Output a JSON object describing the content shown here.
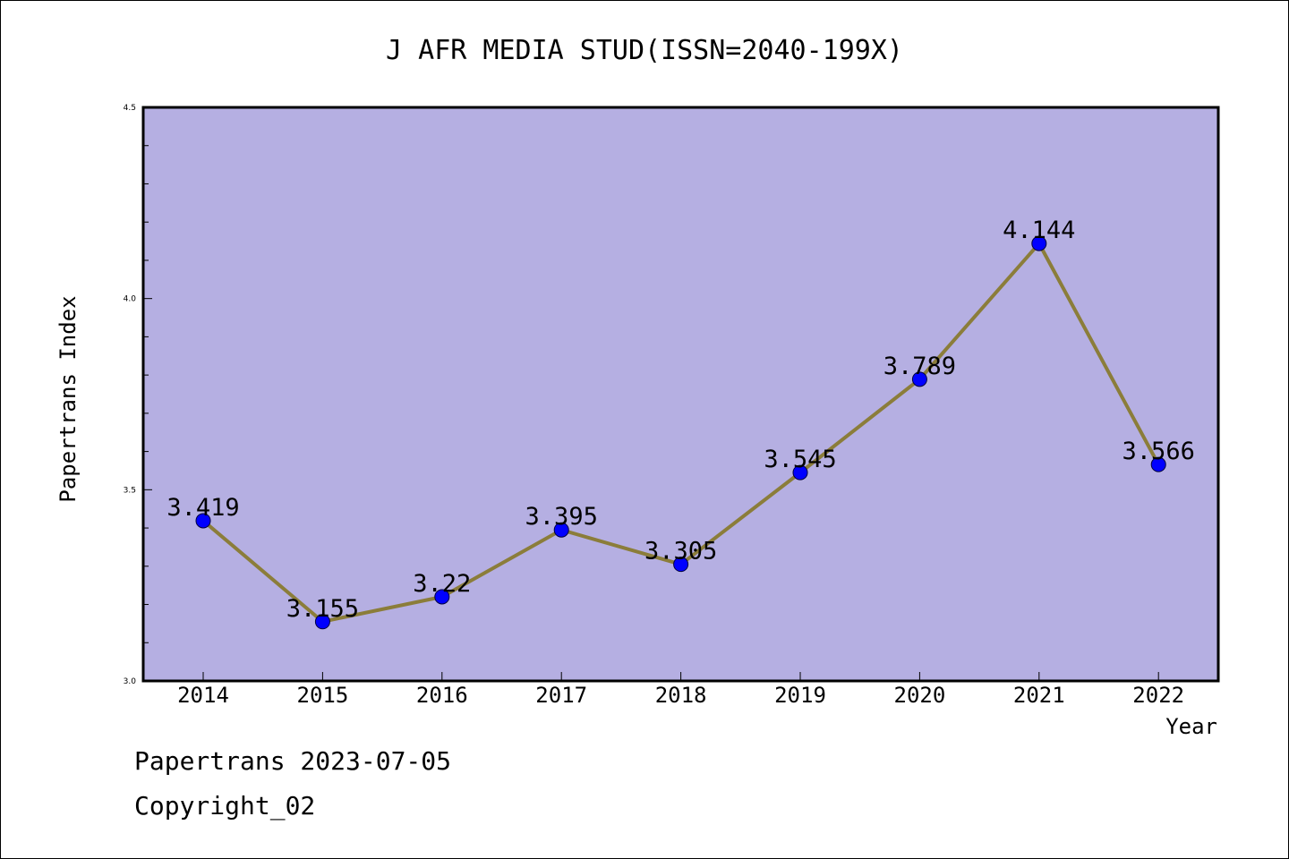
{
  "chart_data": {
    "type": "line",
    "title": "J AFR MEDIA STUD(ISSN=2040-199X)",
    "xlabel": "Year",
    "ylabel": "Papertrans Index",
    "categories": [
      "2014",
      "2015",
      "2016",
      "2017",
      "2018",
      "2019",
      "2020",
      "2021",
      "2022"
    ],
    "values": [
      3.419,
      3.155,
      3.22,
      3.395,
      3.305,
      3.545,
      3.789,
      4.144,
      3.566
    ],
    "data_labels": [
      "3.419",
      "3.155",
      "3.22",
      "3.395",
      "3.305",
      "3.545",
      "3.789",
      "4.144",
      "3.566"
    ],
    "ylim": [
      3.0,
      4.5
    ],
    "yticks": [
      "3.0",
      "3.5",
      "4.0",
      "4.5"
    ],
    "grid": false,
    "colors": {
      "plot_background": "#b5afe2",
      "line": "#8b7d3a",
      "marker": "#0000ff"
    }
  },
  "footer": {
    "line1": "Papertrans 2023-07-05",
    "line2": "Copyright_02"
  }
}
